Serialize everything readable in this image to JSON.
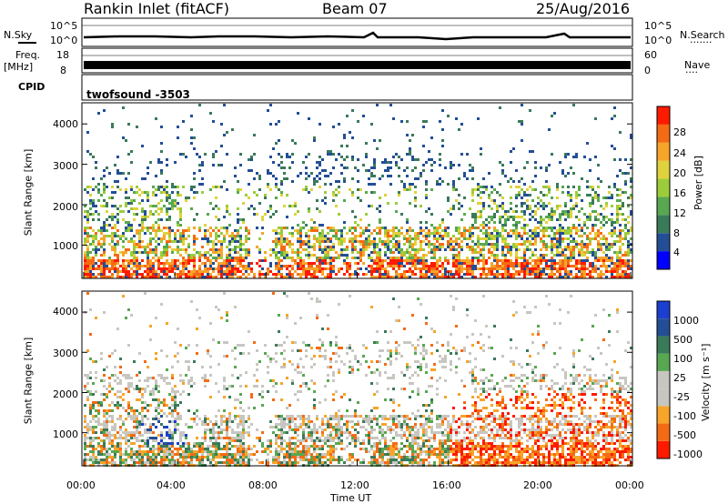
{
  "header": {
    "title": "Rankin Inlet (fitACF)",
    "beam": "Beam 07",
    "date": "25/Aug/2016"
  },
  "nsky_panel": {
    "left_label": "N.Sky",
    "right_label": "N.Search",
    "ticks": [
      "10^5",
      "10^0"
    ]
  },
  "freq_panel": {
    "left_label_top": "Freq.",
    "left_label_unit": "[MHz]",
    "right_label": "Nave",
    "left_ticks": [
      "18",
      "8"
    ],
    "right_ticks": [
      "60",
      "0"
    ]
  },
  "cpid_panel": {
    "label": "CPID",
    "value": "twofsound -3503"
  },
  "colors": {
    "power_scale": [
      "#0000ff",
      "#234e96",
      "#3a7a59",
      "#57a850",
      "#9ccc3a",
      "#e0d23c",
      "#f7a42a",
      "#f46b14",
      "#ff1a00"
    ],
    "velocity_scale": [
      "#ff1a00",
      "#f46b14",
      "#f7a42a",
      "#c8c6c0",
      "#c8c6c0",
      "#57a850",
      "#3a7a59",
      "#234e96",
      "#1c3fd0"
    ]
  },
  "chart_data": [
    {
      "type": "heatmap",
      "name": "power",
      "ylabel": "Slant Range [km]",
      "yticks": [
        "1000",
        "2000",
        "3000",
        "4000"
      ],
      "ylim": [
        200,
        4500
      ],
      "xlim_hours": [
        0,
        24
      ],
      "colorbar_label": "Power [dB]",
      "colorbar_ticks": [
        "4",
        "8",
        "12",
        "16",
        "20",
        "24",
        "28"
      ],
      "colorbar_range": [
        0,
        30
      ]
    },
    {
      "type": "heatmap",
      "name": "velocity",
      "ylabel": "Slant Range [km]",
      "yticks": [
        "1000",
        "2000",
        "3000",
        "4000"
      ],
      "ylim": [
        200,
        4500
      ],
      "xlim_hours": [
        0,
        24
      ],
      "xlabel": "Time UT",
      "xticks": [
        "00:00",
        "04:00",
        "08:00",
        "12:00",
        "16:00",
        "20:00",
        "00:00"
      ],
      "colorbar_label": "Velocity [m s⁻¹]",
      "colorbar_ticks": [
        "1000",
        "500",
        "100",
        "25",
        "-25",
        "-100",
        "-500",
        "-1000"
      ]
    }
  ]
}
